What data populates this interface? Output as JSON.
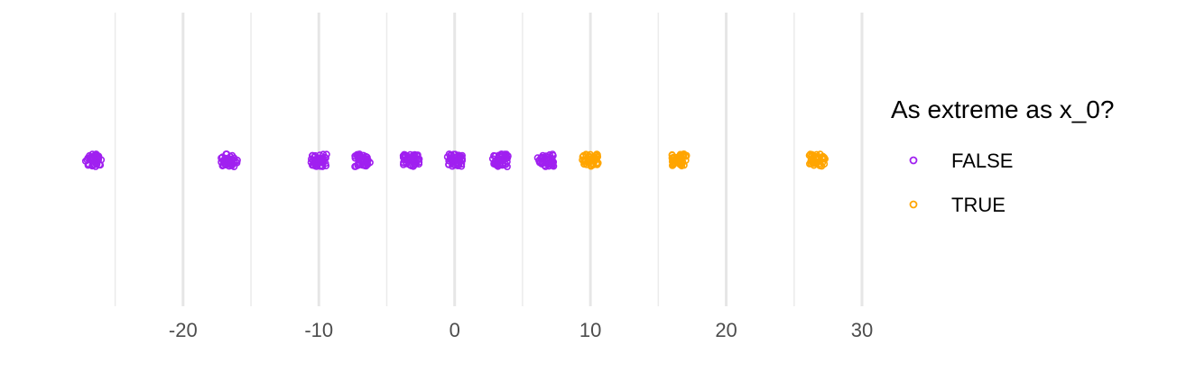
{
  "chart_data": {
    "type": "scatter",
    "xlim": [
      -27.5,
      30.0
    ],
    "x_ticks": [
      -20,
      -10,
      0,
      10,
      20,
      30
    ],
    "x_tick_labels": [
      "-20",
      "-10",
      "0",
      "10",
      "20",
      "30"
    ],
    "minor_grid": [
      -25,
      -15,
      -5,
      5,
      15,
      25
    ],
    "grid": true,
    "legend": {
      "title": "As extreme as x_0?",
      "position": "right",
      "entries": [
        {
          "label": "FALSE",
          "color": "#a020f0"
        },
        {
          "label": "TRUE",
          "color": "#ffa500"
        }
      ]
    },
    "series": [
      {
        "name": "FALSE",
        "color": "#a020f0",
        "x": [
          -26.6,
          -16.6,
          -10.0,
          -6.8,
          -3.2,
          0.0,
          3.4,
          6.7
        ]
      },
      {
        "name": "TRUE",
        "color": "#ffa500",
        "x": [
          10.0,
          16.6,
          26.7
        ]
      }
    ]
  }
}
